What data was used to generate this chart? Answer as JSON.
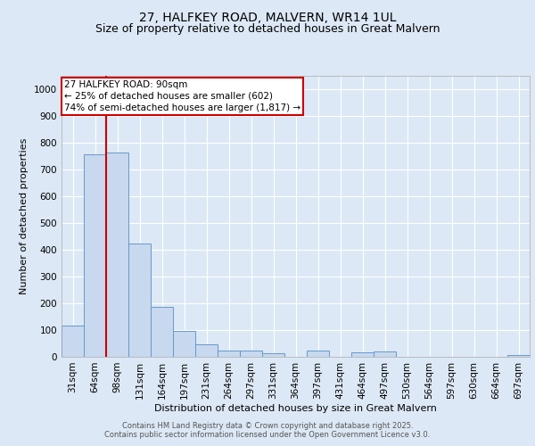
{
  "title_line1": "27, HALFKEY ROAD, MALVERN, WR14 1UL",
  "title_line2": "Size of property relative to detached houses in Great Malvern",
  "xlabel": "Distribution of detached houses by size in Great Malvern",
  "ylabel": "Number of detached properties",
  "categories": [
    "31sqm",
    "64sqm",
    "98sqm",
    "131sqm",
    "164sqm",
    "197sqm",
    "231sqm",
    "264sqm",
    "297sqm",
    "331sqm",
    "364sqm",
    "397sqm",
    "431sqm",
    "464sqm",
    "497sqm",
    "530sqm",
    "564sqm",
    "597sqm",
    "630sqm",
    "664sqm",
    "697sqm"
  ],
  "values": [
    117,
    757,
    762,
    422,
    186,
    97,
    47,
    22,
    25,
    15,
    0,
    25,
    0,
    18,
    20,
    0,
    0,
    0,
    0,
    0,
    8
  ],
  "bar_color": "#c8d8ee",
  "bar_edge_color": "#6699cc",
  "vline_color": "#cc0000",
  "vline_pos": 1.5,
  "ylim": [
    0,
    1050
  ],
  "yticks": [
    0,
    100,
    200,
    300,
    400,
    500,
    600,
    700,
    800,
    900,
    1000
  ],
  "annotation_line1": "27 HALFKEY ROAD: 90sqm",
  "annotation_line2": "← 25% of detached houses are smaller (602)",
  "annotation_line3": "74% of semi-detached houses are larger (1,817) →",
  "annotation_box_color": "#cc0000",
  "footer_line1": "Contains HM Land Registry data © Crown copyright and database right 2025.",
  "footer_line2": "Contains public sector information licensed under the Open Government Licence v3.0.",
  "background_color": "#dce8f5",
  "grid_color": "#ffffff",
  "title_fontsize": 10,
  "subtitle_fontsize": 9,
  "axis_label_fontsize": 8,
  "tick_fontsize": 7.5,
  "annotation_fontsize": 7.5,
  "footer_fontsize": 6
}
